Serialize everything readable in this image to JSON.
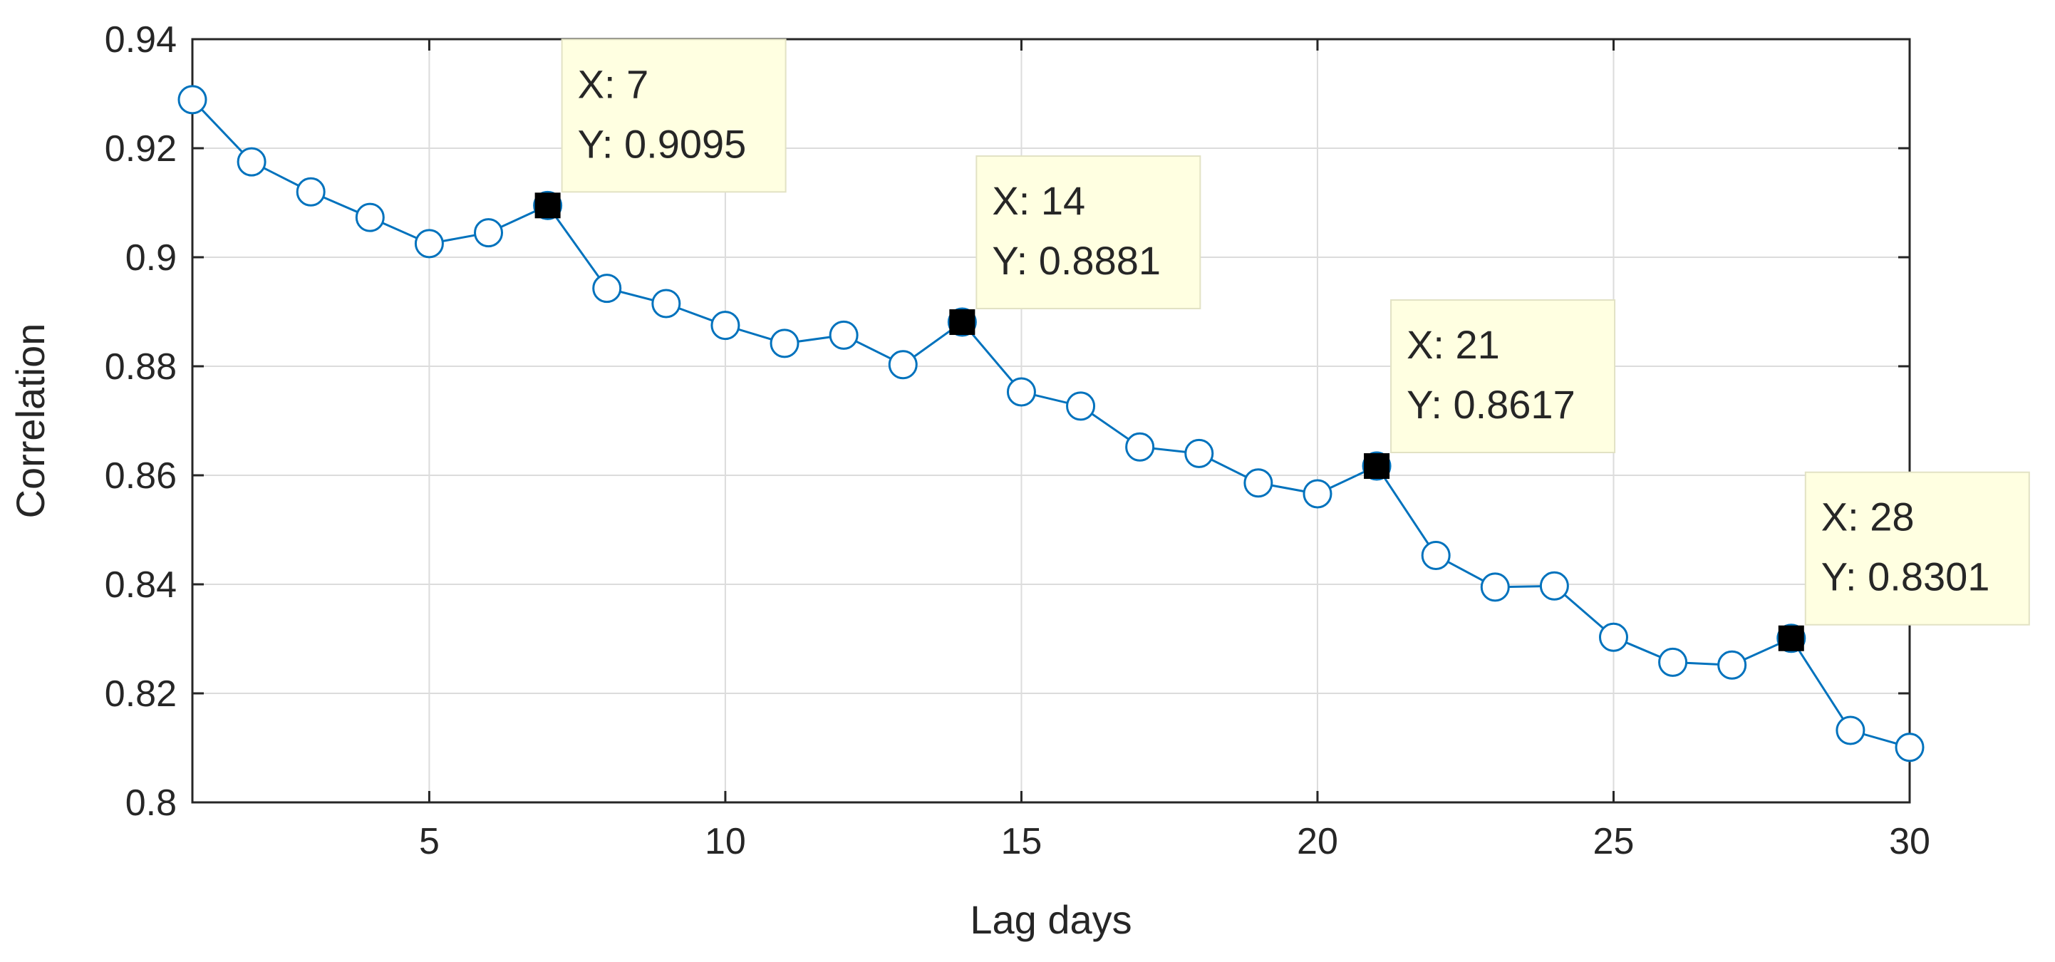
{
  "chart_data": {
    "type": "line",
    "xlabel": "Lag days",
    "ylabel": "Correlation",
    "xlim": [
      1,
      30
    ],
    "ylim": [
      0.8,
      0.94
    ],
    "xticks": [
      "5",
      "10",
      "15",
      "20",
      "25",
      "30"
    ],
    "xtick_values": [
      5,
      10,
      15,
      20,
      25,
      30
    ],
    "yticks": [
      "0.8",
      "0.82",
      "0.84",
      "0.86",
      "0.88",
      "0.9",
      "0.92",
      "0.94"
    ],
    "ytick_values": [
      0.8,
      0.82,
      0.84,
      0.86,
      0.88,
      0.9,
      0.92,
      0.94
    ],
    "grid": true,
    "line_color": "#0072BD",
    "marker": "circle",
    "series": [
      {
        "x": [
          1,
          2,
          3,
          4,
          5,
          6,
          7,
          8,
          9,
          10,
          11,
          12,
          13,
          14,
          15,
          16,
          17,
          18,
          19,
          20,
          21,
          22,
          23,
          24,
          25,
          26,
          27,
          28,
          29,
          30
        ],
        "values": [
          0.9289,
          0.9175,
          0.912,
          0.9073,
          0.9025,
          0.9045,
          0.9095,
          0.8943,
          0.8915,
          0.8875,
          0.8842,
          0.8857,
          0.8803,
          0.8881,
          0.8753,
          0.8727,
          0.8652,
          0.864,
          0.8586,
          0.8566,
          0.8617,
          0.8453,
          0.8395,
          0.8397,
          0.8303,
          0.8257,
          0.8252,
          0.8301,
          0.8132,
          0.8101
        ]
      }
    ],
    "datatips": [
      {
        "x": 7,
        "y": 0.9095,
        "x_label": "X: 7",
        "y_label": "Y: 0.9095"
      },
      {
        "x": 14,
        "y": 0.8881,
        "x_label": "X: 14",
        "y_label": "Y: 0.8881"
      },
      {
        "x": 21,
        "y": 0.8617,
        "x_label": "X: 21",
        "y_label": "Y: 0.8617"
      },
      {
        "x": 28,
        "y": 0.8301,
        "x_label": "X: 28",
        "y_label": "Y: 0.8301"
      }
    ]
  }
}
